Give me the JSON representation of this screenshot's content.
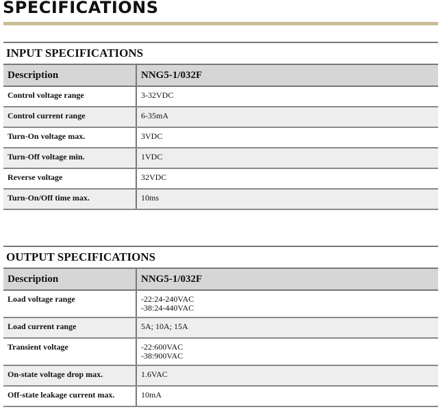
{
  "page_title": "SPECIFICATIONS",
  "colors": {
    "accent_bar": "#c9bd96",
    "header_bg": "#d6d6d6",
    "alt_row_bg": "#eeeeee"
  },
  "input": {
    "heading": "INPUT SPECIFICATIONS",
    "columns": [
      "Description",
      "NNG5-1/032F"
    ],
    "rows": [
      {
        "desc": "Control voltage range",
        "value": [
          "3-32VDC"
        ]
      },
      {
        "desc": "Control current range",
        "value": [
          "6-35mA"
        ]
      },
      {
        "desc": "Turn-On voltage max.",
        "value": [
          "3VDC"
        ]
      },
      {
        "desc": "Turn-Off voltage min.",
        "value": [
          "1VDC"
        ]
      },
      {
        "desc": "Reverse voltage",
        "value": [
          "32VDC"
        ]
      },
      {
        "desc": "Turn-On/Off time max.",
        "value": [
          "10ms"
        ]
      }
    ]
  },
  "output": {
    "heading": "OUTPUT SPECIFICATIONS",
    "columns": [
      "Description",
      "NNG5-1/032F"
    ],
    "rows": [
      {
        "desc": "Load voltage range",
        "value": [
          "-22:24-240VAC",
          "-38:24-440VAC"
        ]
      },
      {
        "desc": "Load current range",
        "value": [
          "5A; 10A; 15A"
        ]
      },
      {
        "desc": "Transient voltage",
        "value": [
          "-22:600VAC",
          "-38:900VAC"
        ]
      },
      {
        "desc": "On-state voltage drop max.",
        "value": [
          "1.6VAC"
        ]
      },
      {
        "desc": "Off-state leakage current max.",
        "value": [
          "10mA"
        ]
      }
    ]
  }
}
